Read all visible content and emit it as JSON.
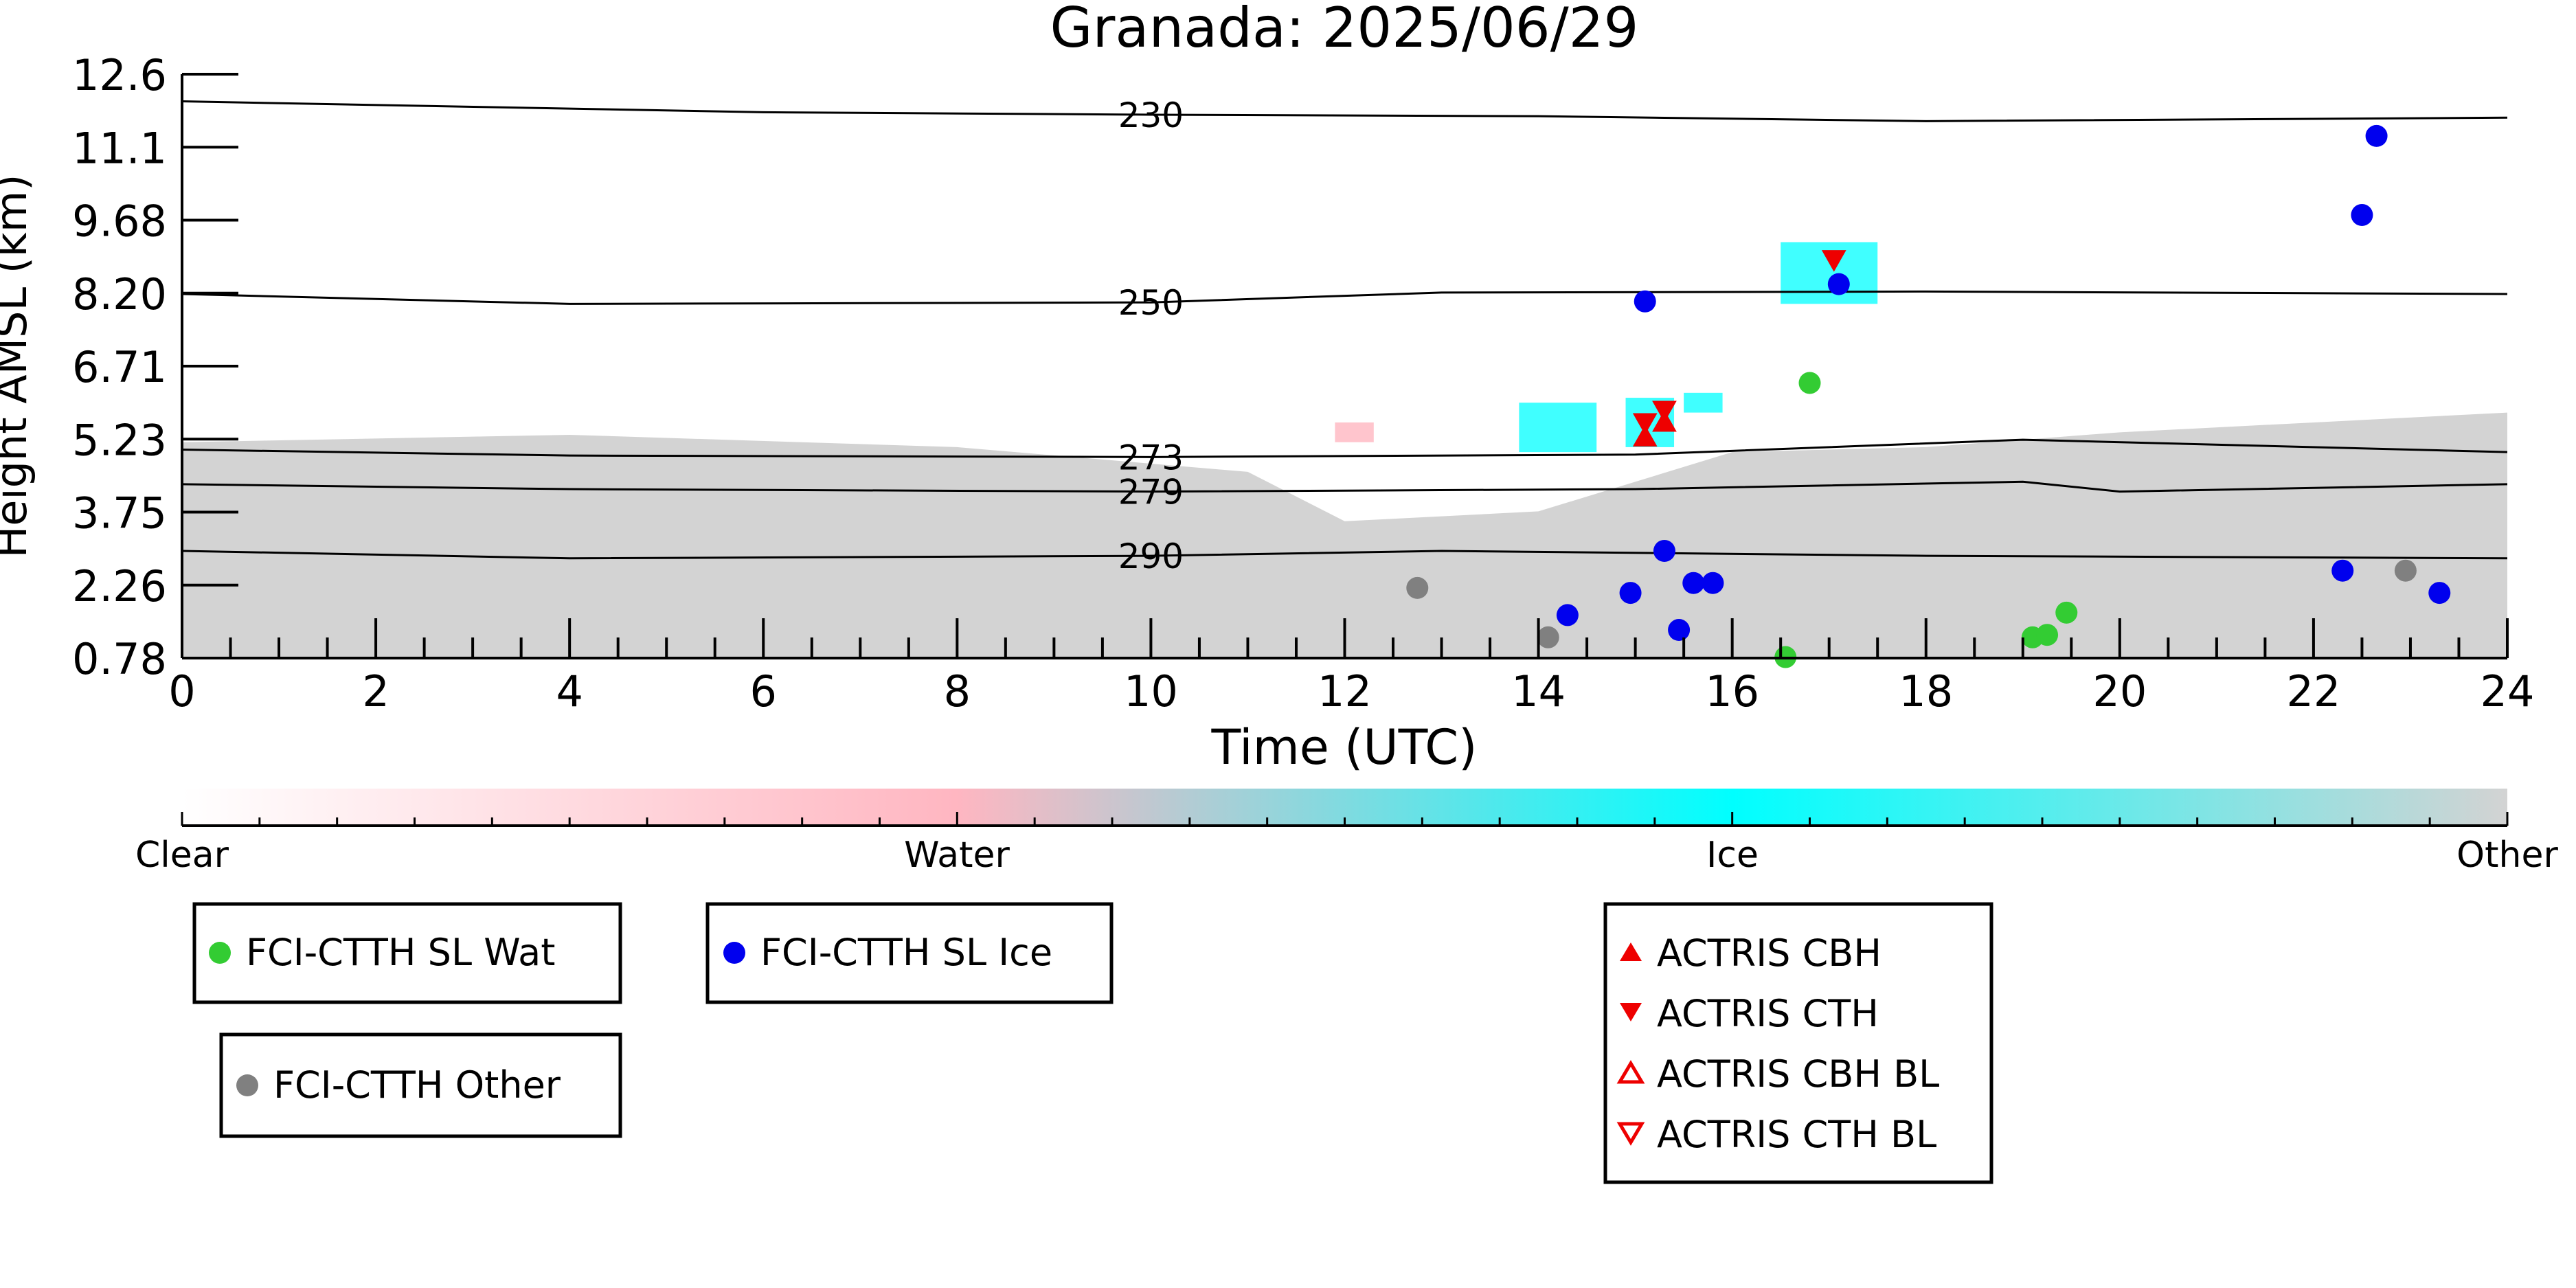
{
  "chart_data": {
    "type": "scatter",
    "title": "Granada: 2025/06/29",
    "xlabel": "Time (UTC)",
    "ylabel": "Height AMSL (km)",
    "xlim": [
      0,
      24
    ],
    "ylim": [
      0.78,
      12.6
    ],
    "x_ticks": [
      "0",
      "2",
      "4",
      "6",
      "8",
      "10",
      "12",
      "14",
      "16",
      "18",
      "20",
      "22",
      "24"
    ],
    "y_ticks": [
      "0.78",
      "2.26",
      "3.75",
      "5.23",
      "6.71",
      "8.20",
      "9.68",
      "11.1",
      "12.6"
    ],
    "isotherms": [
      {
        "label": "230",
        "points": [
          [
            0,
            12.05
          ],
          [
            6,
            11.83
          ],
          [
            10,
            11.78
          ],
          [
            14,
            11.75
          ],
          [
            18,
            11.65
          ],
          [
            24,
            11.72
          ]
        ]
      },
      {
        "label": "250",
        "points": [
          [
            0,
            8.15
          ],
          [
            4,
            7.95
          ],
          [
            10,
            7.98
          ],
          [
            13,
            8.18
          ],
          [
            18,
            8.2
          ],
          [
            24,
            8.15
          ]
        ]
      },
      {
        "label": "273",
        "points": [
          [
            0,
            5.0
          ],
          [
            4,
            4.88
          ],
          [
            10,
            4.85
          ],
          [
            15,
            4.9
          ],
          [
            19,
            5.2
          ],
          [
            24,
            4.95
          ]
        ]
      },
      {
        "label": "279",
        "points": [
          [
            0,
            4.3
          ],
          [
            4,
            4.2
          ],
          [
            10,
            4.15
          ],
          [
            15,
            4.2
          ],
          [
            19,
            4.35
          ],
          [
            20,
            4.15
          ],
          [
            24,
            4.3
          ]
        ]
      },
      {
        "label": "290",
        "points": [
          [
            0,
            2.95
          ],
          [
            4,
            2.8
          ],
          [
            10,
            2.85
          ],
          [
            13,
            2.95
          ],
          [
            18,
            2.85
          ],
          [
            24,
            2.8
          ]
        ]
      }
    ],
    "classification_regions": {
      "other_boundary": [
        [
          0,
          5.15
        ],
        [
          4,
          5.3
        ],
        [
          8,
          5.05
        ],
        [
          11,
          4.55
        ],
        [
          12,
          3.55
        ],
        [
          14,
          3.75
        ],
        [
          16,
          4.95
        ],
        [
          18,
          5.05
        ],
        [
          20,
          5.35
        ],
        [
          24,
          5.75
        ]
      ],
      "ice_patches": [
        {
          "x0": 13.8,
          "x1": 14.6,
          "y0": 4.95,
          "y1": 5.95
        },
        {
          "x0": 14.9,
          "x1": 15.4,
          "y0": 5.05,
          "y1": 6.05
        },
        {
          "x0": 15.5,
          "x1": 15.9,
          "y0": 5.75,
          "y1": 6.15
        },
        {
          "x0": 16.5,
          "x1": 17.5,
          "y0": 7.95,
          "y1": 9.2
        }
      ],
      "water_patches": [
        {
          "x0": 11.9,
          "x1": 12.3,
          "y0": 5.15,
          "y1": 5.55
        }
      ]
    },
    "series": [
      {
        "name": "FCI-CTTH SL Wat",
        "marker": "circle",
        "color": "#33cc33",
        "points": [
          [
            16.55,
            0.8
          ],
          [
            16.8,
            6.35
          ],
          [
            19.1,
            1.2
          ],
          [
            19.25,
            1.25
          ],
          [
            19.45,
            1.7
          ]
        ]
      },
      {
        "name": "FCI-CTTH SL Ice",
        "marker": "circle",
        "color": "#0000ee",
        "points": [
          [
            14.3,
            1.65
          ],
          [
            14.95,
            2.1
          ],
          [
            15.1,
            8.0
          ],
          [
            15.3,
            2.95
          ],
          [
            15.45,
            1.35
          ],
          [
            15.6,
            2.3
          ],
          [
            15.8,
            2.3
          ],
          [
            17.1,
            8.35
          ],
          [
            22.3,
            2.55
          ],
          [
            22.5,
            9.75
          ],
          [
            22.65,
            11.35
          ],
          [
            23.3,
            2.1
          ]
        ]
      },
      {
        "name": "FCI-CTTH Other",
        "marker": "circle",
        "color": "#808080",
        "points": [
          [
            12.75,
            2.2
          ],
          [
            14.1,
            1.2
          ],
          [
            22.95,
            2.55
          ]
        ]
      },
      {
        "name": "ACTRIS CBH",
        "marker": "triangle-up-filled",
        "color": "#ee0000",
        "points": [
          [
            15.1,
            5.25
          ],
          [
            15.3,
            5.55
          ]
        ]
      },
      {
        "name": "ACTRIS CTH",
        "marker": "triangle-down-filled",
        "color": "#ee0000",
        "points": [
          [
            15.1,
            5.55
          ],
          [
            15.3,
            5.8
          ],
          [
            17.05,
            8.85
          ]
        ]
      },
      {
        "name": "ACTRIS CBH BL",
        "marker": "triangle-up-open",
        "color": "#ee0000",
        "points": []
      },
      {
        "name": "ACTRIS CTH BL",
        "marker": "triangle-down-open",
        "color": "#ee0000",
        "points": []
      }
    ],
    "colorbar": {
      "labels": [
        "Clear",
        "Water",
        "Ice",
        "Other"
      ],
      "colors": [
        "#ffffff",
        "#ffb6c1",
        "#00ffff",
        "#d3d3d3"
      ]
    },
    "legend_boxes": [
      [
        "FCI-CTTH SL Wat"
      ],
      [
        "FCI-CTTH SL Ice"
      ],
      [
        "FCI-CTTH Other"
      ],
      [
        "ACTRIS CBH",
        "ACTRIS CTH",
        "ACTRIS CBH BL",
        "ACTRIS CTH BL"
      ]
    ]
  }
}
